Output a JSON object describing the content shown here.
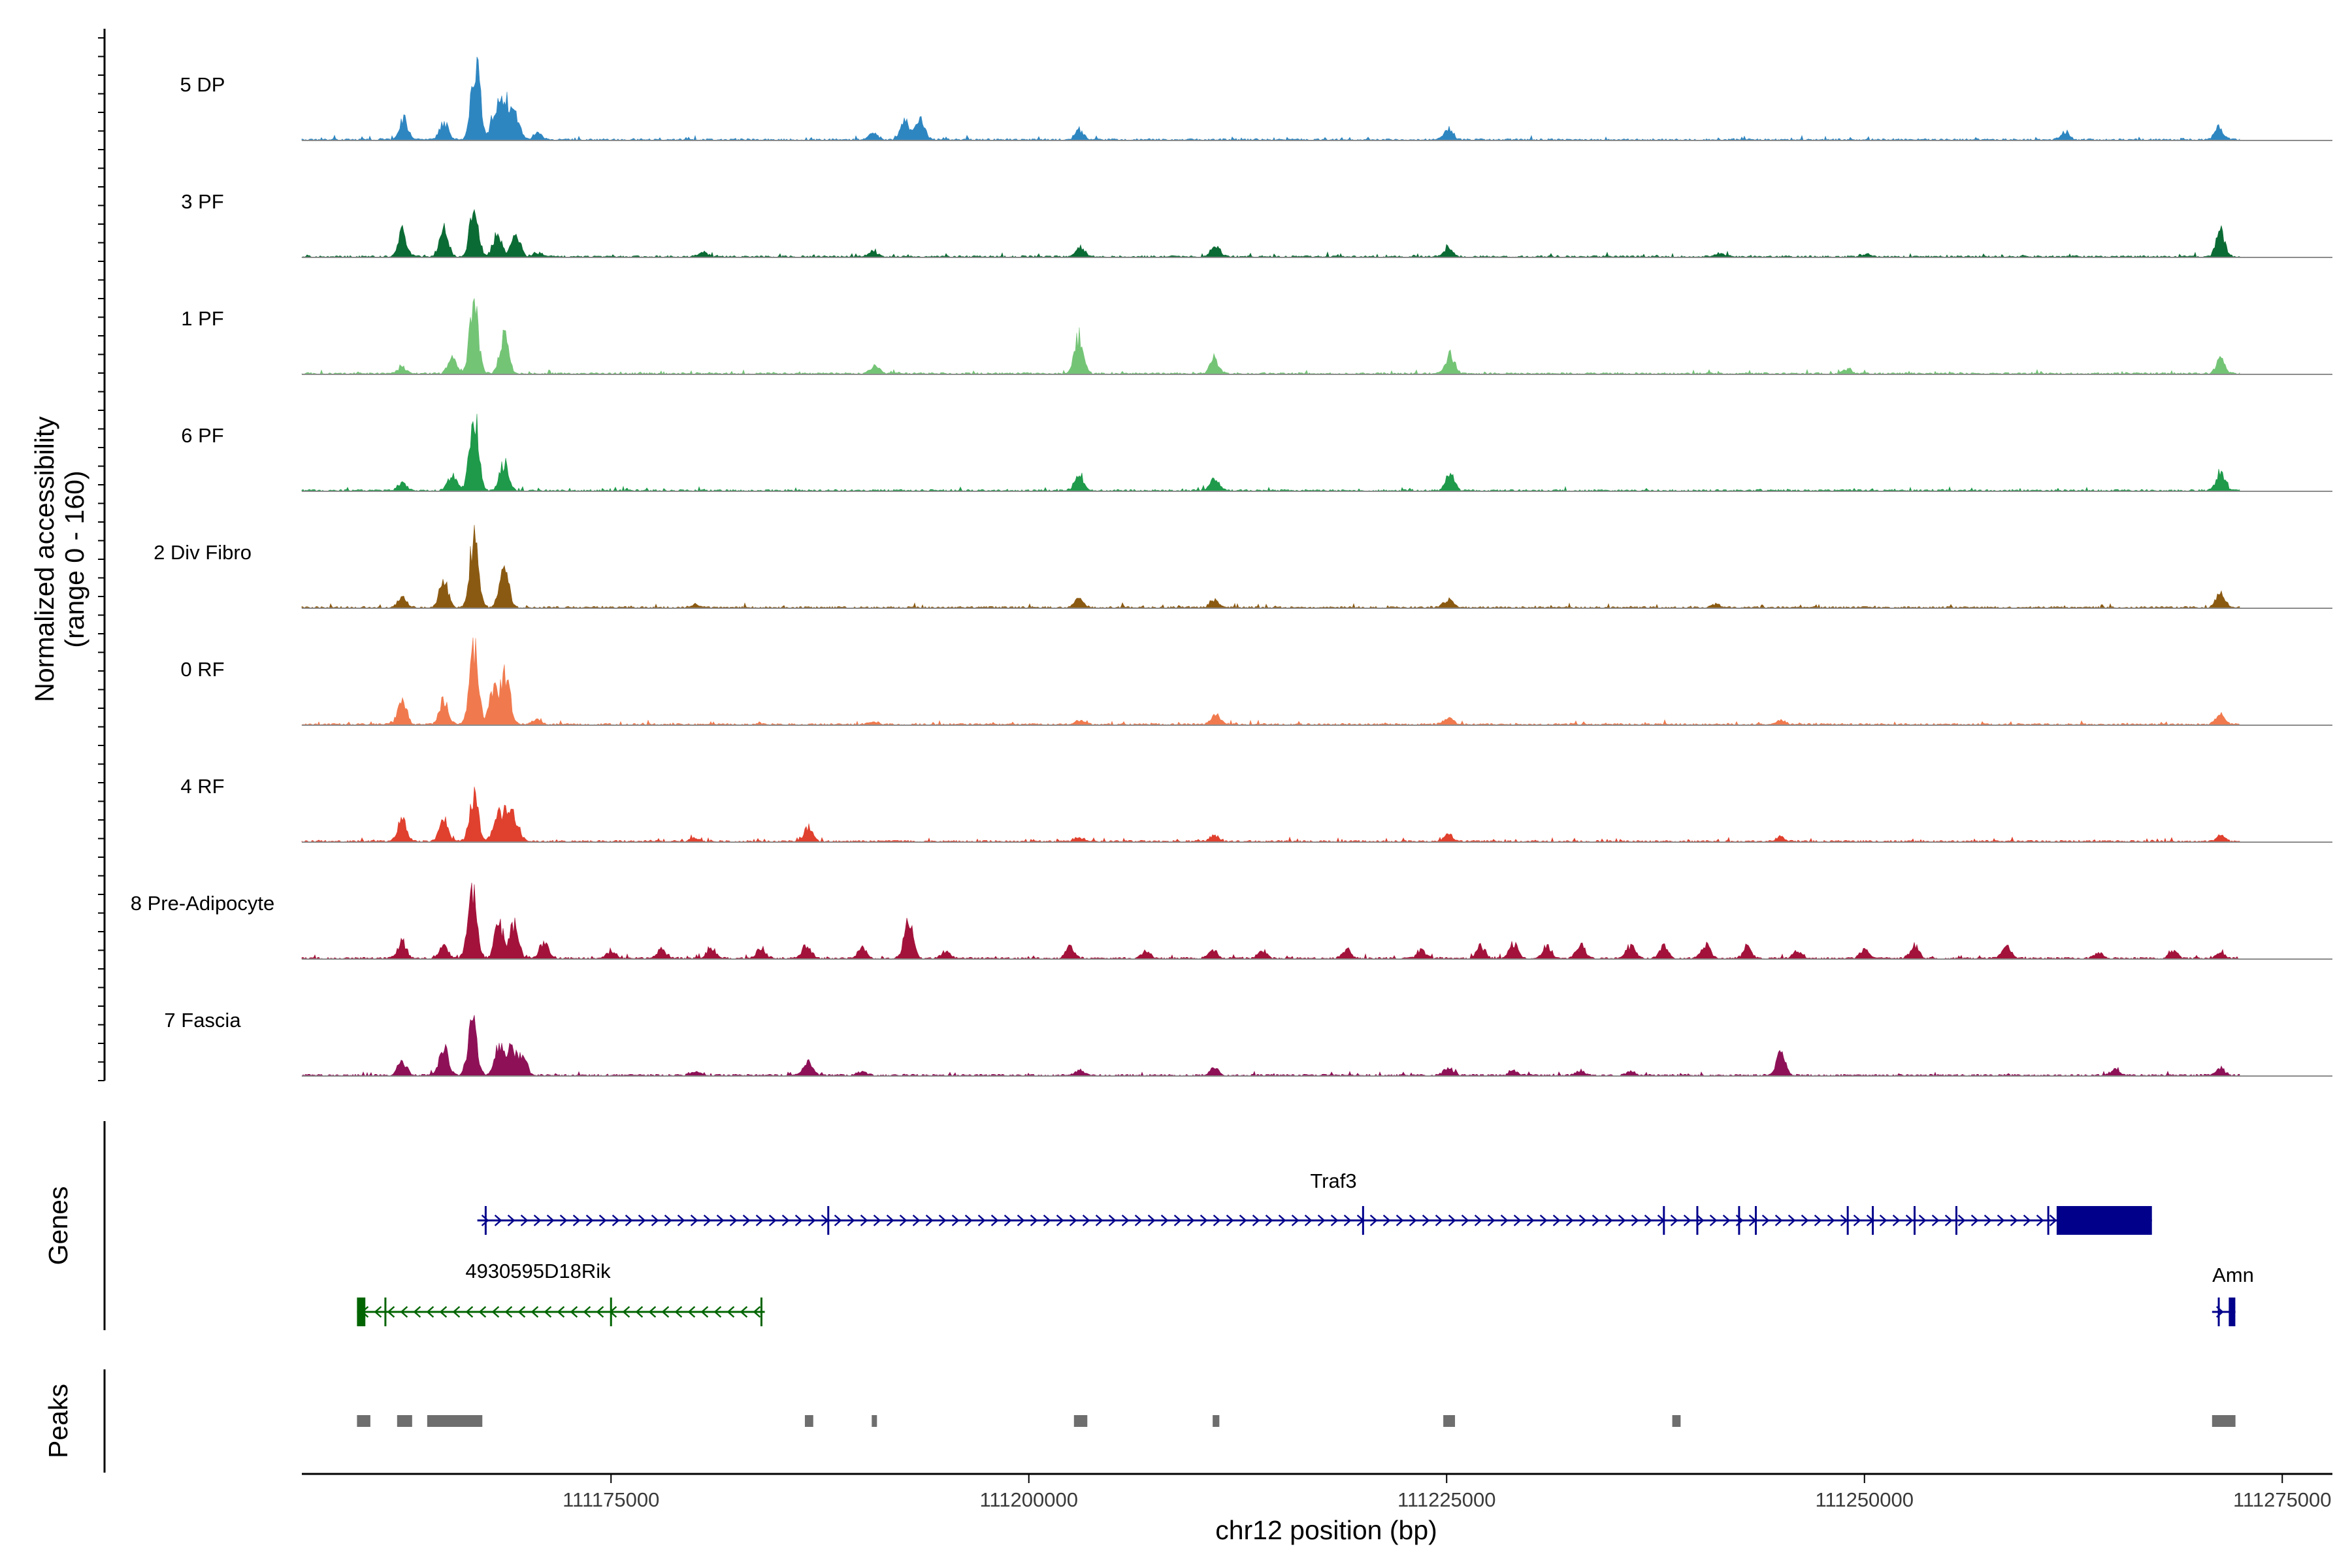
{
  "chart_data": {
    "type": "coverage-track",
    "chromosome": "chr12",
    "xlabel": "chr12 position (bp)",
    "xlim": [
      111156500,
      111278000
    ],
    "x_ticks": [
      111175000,
      111200000,
      111225000,
      111250000,
      111275000
    ],
    "x_tick_labels": [
      "111175000",
      "111200000",
      "111225000",
      "111250000",
      "111275000"
    ],
    "ylabel_line1": "Normalized accessibility",
    "ylabel_line2": "(range 0 - 160)",
    "ylim": [
      0,
      160
    ],
    "genes_label": "Genes",
    "peaks_label": "Peaks",
    "tracks": [
      {
        "name": "5 DP",
        "color": "#2E86C1",
        "peaks": [
          [
            111162600,
            40
          ],
          [
            111165000,
            35
          ],
          [
            111166900,
            160
          ],
          [
            111168100,
            65
          ],
          [
            111168700,
            75
          ],
          [
            111169300,
            50
          ],
          [
            111170600,
            12
          ],
          [
            111190700,
            15
          ],
          [
            111192600,
            40
          ],
          [
            111193500,
            45
          ],
          [
            111203000,
            18
          ],
          [
            111225100,
            22
          ],
          [
            111262000,
            14
          ],
          [
            111271200,
            25
          ]
        ]
      },
      {
        "name": "3 PF",
        "color": "#0B6B34",
        "peaks": [
          [
            111162500,
            50
          ],
          [
            111165000,
            55
          ],
          [
            111166800,
            95
          ],
          [
            111168200,
            45
          ],
          [
            111169300,
            50
          ],
          [
            111170600,
            8
          ],
          [
            111180500,
            10
          ],
          [
            111190700,
            12
          ],
          [
            111203100,
            20
          ],
          [
            111211200,
            22
          ],
          [
            111225100,
            18
          ],
          [
            111241400,
            8
          ],
          [
            111250000,
            5
          ],
          [
            111271300,
            55
          ]
        ]
      },
      {
        "name": "1 PF",
        "color": "#74C476",
        "peaks": [
          [
            111162500,
            15
          ],
          [
            111165500,
            30
          ],
          [
            111166800,
            140
          ],
          [
            111168600,
            75
          ],
          [
            111190800,
            18
          ],
          [
            111203000,
            75
          ],
          [
            111211100,
            30
          ],
          [
            111225200,
            40
          ],
          [
            111249000,
            10
          ],
          [
            111271300,
            28
          ]
        ]
      },
      {
        "name": "6 PF",
        "color": "#1E9A4A",
        "peaks": [
          [
            111162500,
            15
          ],
          [
            111165500,
            30
          ],
          [
            111166800,
            160
          ],
          [
            111168600,
            55
          ],
          [
            111203000,
            35
          ],
          [
            111211100,
            25
          ],
          [
            111225200,
            35
          ],
          [
            111271300,
            40
          ]
        ]
      },
      {
        "name": "2 Div Fibro",
        "color": "#8B5A12",
        "peaks": [
          [
            111162500,
            20
          ],
          [
            111165000,
            55
          ],
          [
            111166800,
            140
          ],
          [
            111168600,
            95
          ],
          [
            111180000,
            6
          ],
          [
            111203000,
            18
          ],
          [
            111211100,
            15
          ],
          [
            111225100,
            18
          ],
          [
            111241100,
            8
          ],
          [
            111271300,
            30
          ]
        ]
      },
      {
        "name": "0 RF",
        "color": "#F07A4E",
        "peaks": [
          [
            111162500,
            50
          ],
          [
            111165000,
            50
          ],
          [
            111166800,
            160
          ],
          [
            111168000,
            80
          ],
          [
            111168700,
            100
          ],
          [
            111170600,
            10
          ],
          [
            111190700,
            5
          ],
          [
            111203100,
            10
          ],
          [
            111211200,
            20
          ],
          [
            111225100,
            15
          ],
          [
            111245000,
            8
          ],
          [
            111271300,
            22
          ]
        ]
      },
      {
        "name": "4 RF",
        "color": "#E0402E",
        "peaks": [
          [
            111162500,
            45
          ],
          [
            111165000,
            45
          ],
          [
            111166800,
            90
          ],
          [
            111168200,
            50
          ],
          [
            111168800,
            60
          ],
          [
            111169300,
            35
          ],
          [
            111180000,
            8
          ],
          [
            111186800,
            28
          ],
          [
            111203000,
            10
          ],
          [
            111211100,
            12
          ],
          [
            111225100,
            14
          ],
          [
            111245000,
            10
          ],
          [
            111271300,
            12
          ]
        ]
      },
      {
        "name": "8 Pre-Adipocyte",
        "color": "#A3123A",
        "peaks": [
          [
            111162500,
            35
          ],
          [
            111165000,
            25
          ],
          [
            111166700,
            140
          ],
          [
            111168300,
            70
          ],
          [
            111169200,
            70
          ],
          [
            111171000,
            30
          ],
          [
            111175000,
            15
          ],
          [
            111178000,
            18
          ],
          [
            111181000,
            22
          ],
          [
            111184000,
            20
          ],
          [
            111186700,
            28
          ],
          [
            111190000,
            20
          ],
          [
            111192800,
            75
          ],
          [
            111195000,
            15
          ],
          [
            111202500,
            25
          ],
          [
            111207000,
            15
          ],
          [
            111211000,
            18
          ],
          [
            111214000,
            15
          ],
          [
            111219000,
            18
          ],
          [
            111223500,
            15
          ],
          [
            111227000,
            25
          ],
          [
            111229000,
            30
          ],
          [
            111231000,
            25
          ],
          [
            111233000,
            28
          ],
          [
            111236000,
            25
          ],
          [
            111238000,
            25
          ],
          [
            111240500,
            28
          ],
          [
            111243000,
            22
          ],
          [
            111246000,
            15
          ],
          [
            111250000,
            18
          ],
          [
            111253000,
            28
          ],
          [
            111258500,
            25
          ],
          [
            111264000,
            12
          ],
          [
            111268500,
            14
          ],
          [
            111271300,
            12
          ]
        ]
      },
      {
        "name": "7 Fascia",
        "color": "#8E1157",
        "peaks": [
          [
            111162500,
            30
          ],
          [
            111165000,
            60
          ],
          [
            111166700,
            110
          ],
          [
            111168300,
            60
          ],
          [
            111169000,
            60
          ],
          [
            111169700,
            40
          ],
          [
            111180000,
            8
          ],
          [
            111186800,
            28
          ],
          [
            111190000,
            8
          ],
          [
            111203000,
            10
          ],
          [
            111211100,
            15
          ],
          [
            111225100,
            15
          ],
          [
            111229000,
            8
          ],
          [
            111233000,
            10
          ],
          [
            111236000,
            8
          ],
          [
            111245000,
            45
          ],
          [
            111265000,
            12
          ],
          [
            111271300,
            14
          ]
        ]
      }
    ],
    "genes": [
      {
        "name": "Traf3",
        "strand": "+",
        "color": "#00008B",
        "start": 111167000,
        "end": 111267200,
        "cds_start": 111261500,
        "cds_end": 111267200,
        "exons": [
          111167500,
          111188000,
          111220000,
          111238000,
          111240000,
          111242500,
          111243500,
          111249000,
          111250500,
          111253000,
          111255500,
          111261000
        ]
      },
      {
        "name": "4930595D18Rik",
        "strand": "-",
        "color": "#006400",
        "start": 111159800,
        "end": 111184200,
        "cds_start": 111159800,
        "cds_end": 111160300,
        "exons": [
          111161500,
          111175000,
          111184000
        ]
      },
      {
        "name": "Amn",
        "strand": "+",
        "color": "#00008B",
        "start": 111270800,
        "end": 111272200,
        "cds_start": 111271800,
        "cds_end": 111272100,
        "exons": [
          111271200
        ]
      }
    ],
    "peak_regions": [
      [
        111159800,
        111160600
      ],
      [
        111162200,
        111163100
      ],
      [
        111164000,
        111167300
      ],
      [
        111186600,
        111187100
      ],
      [
        111190600,
        111190900
      ],
      [
        111202700,
        111203500
      ],
      [
        111211000,
        111211400
      ],
      [
        111224800,
        111225500
      ],
      [
        111238500,
        111239000
      ],
      [
        111270800,
        111272200
      ]
    ]
  }
}
